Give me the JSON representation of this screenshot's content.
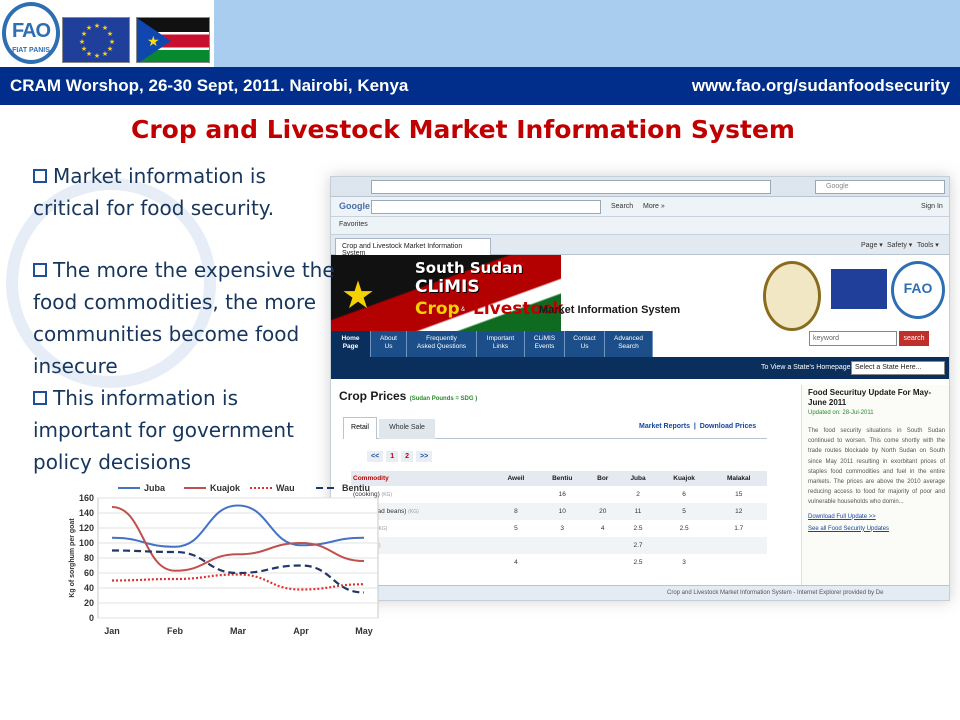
{
  "header": {
    "fao_logo": {
      "name": "FAO",
      "motto": "FIAT PANIS"
    },
    "left_text": "CRAM Worshop, 26-30 Sept, 2011. Nairobi, Kenya",
    "right_text": "www.fao.org/sudanfoodsecurity"
  },
  "slide_title": "Crop and Livestock Market Information System",
  "bullets": [
    {
      "lines": [
        "Market information is",
        "critical for food security."
      ]
    },
    {
      "lines": [
        "The more the expensive the",
        "food commodities, the more",
        "communities become food",
        "insecure"
      ]
    },
    {
      "lines": [
        "This information is",
        "important for government",
        "policy decisions"
      ]
    }
  ],
  "browser": {
    "search_placeholder": "Google",
    "toolbar": {
      "google": "Google",
      "search": "Search",
      "more": "More »",
      "signin": "Sign In"
    },
    "favorites": "Favorites",
    "tab_title": "Crop and Livestock Market Information System",
    "tools": [
      "Page ▾",
      "Safety ▾",
      "Tools ▾"
    ],
    "status": "Crop and Livestock Market Information System - Internet Explorer provided by De"
  },
  "site": {
    "brand": {
      "line1": "South Sudan",
      "line2": "CLiMIS",
      "crop": "Crop",
      "and": "&",
      "livestock": "Livestock",
      "mis": "Market Information System"
    },
    "fao": "FAO",
    "keyword_placeholder": "keyword",
    "search_button": "search",
    "nav": [
      {
        "lines": [
          "Home",
          "Page"
        ]
      },
      {
        "lines": [
          "About",
          "Us"
        ]
      },
      {
        "lines": [
          "Frequently",
          "Asked Questions"
        ]
      },
      {
        "lines": [
          "Important",
          "Links"
        ]
      },
      {
        "lines": [
          "CLiMIS",
          "Events"
        ]
      },
      {
        "lines": [
          "Contact",
          "Us"
        ]
      },
      {
        "lines": [
          "Advanced",
          "Search"
        ]
      }
    ],
    "state_label": "To View a State's Homepage:",
    "state_select": "Select a State Here..."
  },
  "crop_prices": {
    "title": "Crop Prices",
    "subtitle": "(Sudan Pounds = SDG )",
    "tabs": [
      "Retail",
      "Whole Sale"
    ],
    "links": [
      "Market Reports",
      "|",
      "Download Prices"
    ],
    "pager": [
      "<<",
      "1",
      "2",
      ">>"
    ],
    "columns": [
      "Commodity",
      "Aweil",
      "Bentiu",
      "Bor",
      "Juba",
      "Kuajok",
      "Malakal"
    ],
    "rows": [
      {
        "commodity": "(cooking)",
        "unit": "(KG)",
        "values": [
          "",
          "16",
          "",
          "2",
          "6",
          "15"
        ]
      },
      {
        "commodity": "asri (Broad beans)",
        "unit": "(KG)",
        "values": [
          "8",
          "10",
          "20",
          "11",
          "5",
          "12"
        ]
      },
      {
        "commodity": "orghum",
        "unit": "(KG)",
        "values": [
          "5",
          "3",
          "4",
          "2.5",
          "2.5",
          "1.7"
        ]
      },
      {
        "commodity": "chips",
        "unit": "(KG)",
        "values": [
          "",
          "",
          "",
          "2.7",
          "",
          ""
        ]
      },
      {
        "commodity": "illet",
        "unit": "(KG)",
        "values": [
          "4",
          "",
          "",
          "2.5",
          "3",
          ""
        ]
      }
    ]
  },
  "food_security": {
    "title": "Food Securituy Update For May-June 2011",
    "updated": "Updated on: 28-Jul-2011",
    "body": "The food security situations in South Sudan continued to worsen. This come shortly with the trade routes blockade by North Sudan on South since May 2011 resulting in exorbitant prices of staples food commodities and fuel in the entire markets. The prices are above the 2010 average reducing access to food for majority of poor and vulnerable households who domin...",
    "link1": "Download Full Update >>",
    "link2": "See all Food Security Updates"
  },
  "chart_data": {
    "type": "line",
    "categories": [
      "Jan",
      "Feb",
      "Mar",
      "Apr",
      "May"
    ],
    "ylabel": "Kg of sorghum per goat",
    "ylim": [
      0,
      160
    ],
    "yticks": [
      0,
      20,
      40,
      60,
      80,
      100,
      120,
      140,
      160
    ],
    "legend_position": "top",
    "series": [
      {
        "name": "Juba",
        "color": "#4472c4",
        "style": "solid",
        "values": [
          107,
          95,
          150,
          97,
          107
        ]
      },
      {
        "name": "Kuajok",
        "color": "#c0504d",
        "style": "solid",
        "values": [
          148,
          63,
          85,
          100,
          76
        ]
      },
      {
        "name": "Wau",
        "color": "#e03030",
        "style": "dotted",
        "values": [
          50,
          52,
          58,
          38,
          45
        ]
      },
      {
        "name": "Bentiu",
        "color": "#1f3864",
        "style": "dashed",
        "values": [
          90,
          88,
          60,
          70,
          34
        ]
      }
    ]
  },
  "colors": {
    "banner_blue": "#002e8a",
    "title_red": "#c00000",
    "bullet_text": "#17365d"
  }
}
